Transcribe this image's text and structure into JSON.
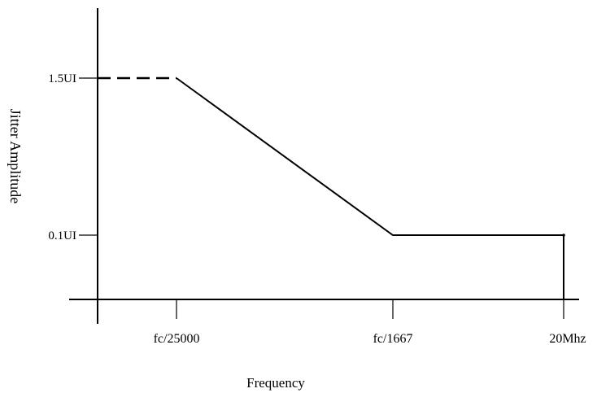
{
  "chart_data": {
    "type": "line",
    "title": "",
    "xlabel": "Frequency",
    "ylabel": "Jitter Amplitude",
    "x_ticks": [
      "fc/25000",
      "fc/1667",
      "20Mhz"
    ],
    "y_ticks": [
      "1.5UI",
      "0.1UI"
    ],
    "x_scale": "log",
    "series": [
      {
        "segments": [
          {
            "style": "dashed",
            "points": [
              [
                "",
                "1.5UI"
              ],
              [
                "fc/25000",
                "1.5UI"
              ]
            ]
          },
          {
            "style": "solid",
            "points": [
              [
                "fc/25000",
                "1.5UI"
              ],
              [
                "fc/1667",
                "0.1UI"
              ],
              [
                "20Mhz",
                "0.1UI"
              ]
            ]
          },
          {
            "style": "solid",
            "points": [
              [
                "20Mhz",
                "0.1UI"
              ],
              [
                "20Mhz",
                ""
              ]
            ]
          }
        ]
      }
    ],
    "grid": false,
    "legend": "none"
  }
}
